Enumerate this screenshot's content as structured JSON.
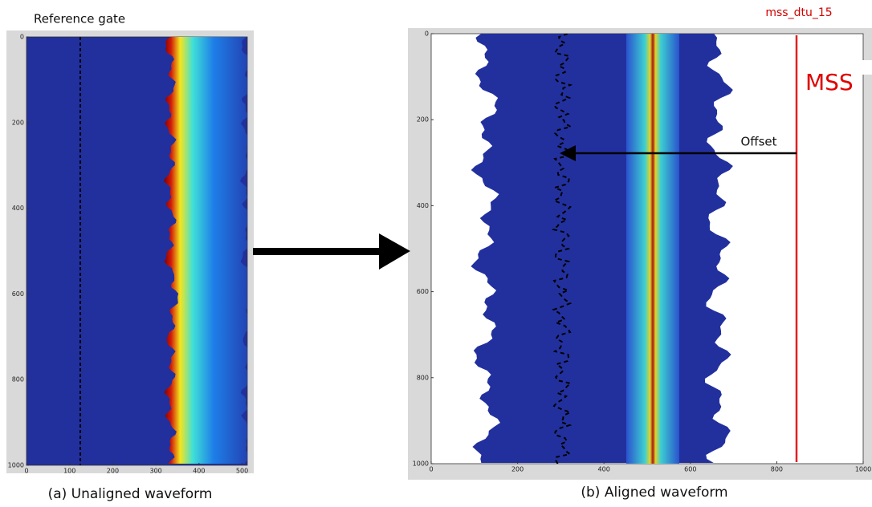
{
  "panels": [
    {
      "top_label": "Reference gate",
      "caption": "(a) Unaligned waveform",
      "xlim": [
        0,
        512
      ],
      "ylim": [
        0,
        1000
      ],
      "xticks": [
        0,
        100,
        200,
        300,
        400,
        500
      ],
      "yticks": [
        0,
        200,
        400,
        600,
        800,
        1000
      ]
    },
    {
      "top_label": "mss_dtu_15",
      "annotations": [
        "MSS",
        "Offset"
      ],
      "caption": "(b) Aligned waveform",
      "xlim": [
        0,
        1000
      ],
      "ylim": [
        0,
        1000
      ],
      "xticks": [
        0,
        200,
        400,
        600,
        800,
        1000
      ],
      "yticks": [
        0,
        200,
        400,
        600,
        800,
        1000
      ]
    }
  ]
}
